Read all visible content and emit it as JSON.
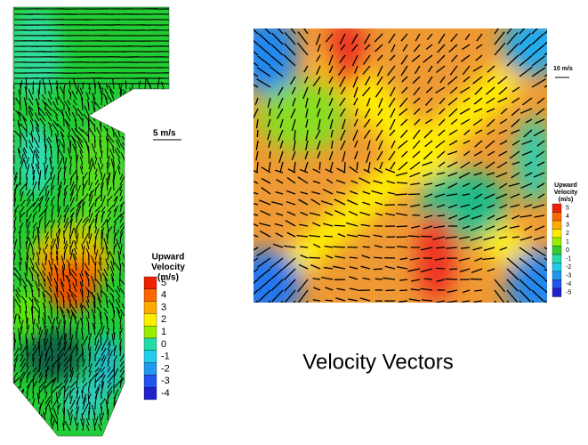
{
  "left_panel": {
    "scale_label": "5 m/s",
    "legend": {
      "title": [
        "Upward",
        "Velocity",
        "(m/s)"
      ],
      "labels": [
        5,
        4,
        3,
        2,
        1,
        0,
        -1,
        -2,
        -3,
        -4
      ]
    }
  },
  "right_panel": {
    "scale_label": "10 m/s",
    "legend": {
      "title": [
        "Upward",
        "Velocity",
        "(m/s)"
      ],
      "labels": [
        5,
        4,
        3,
        2,
        1,
        0,
        -1,
        -2,
        -3,
        -4,
        -5
      ]
    }
  },
  "caption": "Velocity Vectors"
}
